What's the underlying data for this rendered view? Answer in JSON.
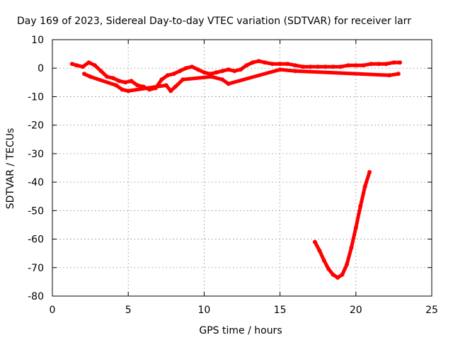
{
  "chart_data": {
    "type": "scatter",
    "title": "Day 169 of 2023, Sidereal Day-to-day VTEC variation (SDTVAR) for receiver larr",
    "xlabel": "GPS time / hours",
    "ylabel": "SDTVAR / TECUs",
    "xlim": [
      0,
      25
    ],
    "ylim": [
      -80,
      10
    ],
    "xticks": [
      "0",
      "5",
      "10",
      "15",
      "20",
      "25"
    ],
    "yticks": [
      "10",
      "0",
      "-10",
      "-20",
      "-30",
      "-40",
      "-50",
      "-60",
      "-70",
      "-80"
    ],
    "grid": true,
    "color": "#ff0000",
    "series": [
      {
        "values": [
          [
            1.3,
            1.5
          ],
          [
            1.6,
            1.0
          ],
          [
            2.0,
            0.5
          ],
          [
            2.4,
            2.0
          ],
          [
            2.8,
            1.0
          ],
          [
            3.2,
            -1.0
          ],
          [
            3.6,
            -3.0
          ],
          [
            4.0,
            -3.5
          ],
          [
            4.4,
            -4.5
          ],
          [
            4.8,
            -5.0
          ],
          [
            5.2,
            -4.5
          ],
          [
            5.6,
            -6.0
          ],
          [
            6.0,
            -6.5
          ],
          [
            6.4,
            -7.5
          ],
          [
            6.8,
            -7.0
          ],
          [
            7.2,
            -4.0
          ],
          [
            7.6,
            -2.5
          ],
          [
            8.0,
            -2.0
          ],
          [
            8.4,
            -1.0
          ],
          [
            8.8,
            0.0
          ],
          [
            9.2,
            0.5
          ],
          [
            9.6,
            -0.5
          ],
          [
            10.0,
            -1.5
          ],
          [
            10.4,
            -2.0
          ],
          [
            10.8,
            -1.5
          ],
          [
            11.2,
            -1.0
          ],
          [
            11.6,
            -0.5
          ],
          [
            12.0,
            -1.0
          ],
          [
            12.4,
            -0.5
          ],
          [
            12.8,
            1.0
          ],
          [
            13.2,
            2.0
          ],
          [
            13.6,
            2.5
          ],
          [
            14.0,
            2.0
          ],
          [
            14.5,
            1.5
          ],
          [
            15.0,
            1.5
          ],
          [
            15.5,
            1.5
          ],
          [
            16.0,
            1.0
          ],
          [
            16.5,
            0.5
          ],
          [
            17.0,
            0.5
          ],
          [
            17.5,
            0.5
          ],
          [
            18.0,
            0.5
          ],
          [
            18.5,
            0.5
          ],
          [
            19.0,
            0.5
          ],
          [
            19.5,
            1.0
          ],
          [
            20.0,
            1.0
          ],
          [
            20.5,
            1.0
          ],
          [
            21.0,
            1.5
          ],
          [
            21.5,
            1.5
          ],
          [
            22.0,
            1.5
          ],
          [
            22.5,
            2.0
          ],
          [
            22.9,
            2.0
          ]
        ]
      },
      {
        "values": [
          [
            2.1,
            -2.0
          ],
          [
            2.5,
            -3.0
          ],
          [
            4.2,
            -6.0
          ],
          [
            4.6,
            -7.5
          ],
          [
            5.0,
            -8.0
          ],
          [
            7.5,
            -6.0
          ],
          [
            7.8,
            -8.0
          ],
          [
            8.1,
            -6.5
          ],
          [
            8.6,
            -4.0
          ],
          [
            10.5,
            -3.0
          ],
          [
            11.2,
            -4.0
          ],
          [
            11.6,
            -5.5
          ],
          [
            15.0,
            -0.5
          ],
          [
            16.0,
            -1.0
          ],
          [
            22.2,
            -2.5
          ],
          [
            22.8,
            -2.0
          ]
        ]
      },
      {
        "values": [
          [
            17.3,
            -61.0
          ],
          [
            17.6,
            -64.0
          ],
          [
            17.9,
            -67.5
          ],
          [
            18.2,
            -70.5
          ],
          [
            18.5,
            -72.5
          ],
          [
            18.8,
            -73.5
          ],
          [
            19.1,
            -72.5
          ],
          [
            19.4,
            -69.0
          ],
          [
            19.7,
            -63.0
          ],
          [
            20.0,
            -56.0
          ],
          [
            20.3,
            -48.5
          ],
          [
            20.6,
            -41.5
          ],
          [
            20.9,
            -36.5
          ]
        ]
      }
    ]
  }
}
